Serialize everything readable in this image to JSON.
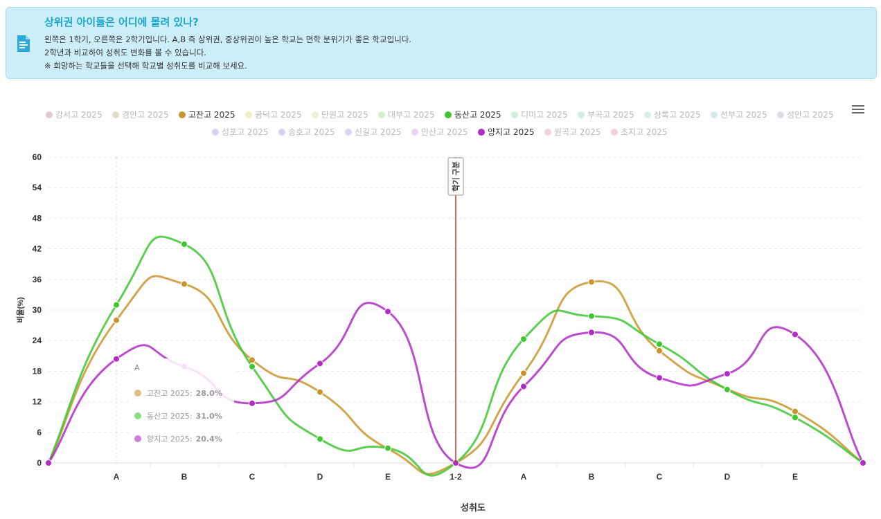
{
  "banner": {
    "title": "상위권 아이들은 어디에 몰려 있나?",
    "line1": "왼쪽은 1학기, 오른쪽은 2학기입니다. A,B 즉 상위권, 중상위권이 높은 학교는 면학 분위기가 좋은 학교입니다.",
    "line2": "2학년과 비교하여 성취도 변화를 볼 수 있습니다.",
    "line3": "※ 희망하는 학교들을 선택해 학교별 성취도를 비교해 보세요.",
    "icon": "document-icon"
  },
  "legend": [
    {
      "label": "강서고 2025",
      "color": "#e4c9cf",
      "active": false
    },
    {
      "label": "경안고 2025",
      "color": "#dedcc9",
      "active": false
    },
    {
      "label": "고잔고 2025",
      "color": "#c9962e",
      "active": true
    },
    {
      "label": "광덕고 2025",
      "color": "#f1efc6",
      "active": false
    },
    {
      "label": "단원고 2025",
      "color": "#ecf3cf",
      "active": false
    },
    {
      "label": "대부고 2025",
      "color": "#d9efcc",
      "active": false
    },
    {
      "label": "동산고 2025",
      "color": "#3ec732",
      "active": true
    },
    {
      "label": "디미고 2025",
      "color": "#d2efdc",
      "active": false
    },
    {
      "label": "부곡고 2025",
      "color": "#cfeee4",
      "active": false
    },
    {
      "label": "상록고 2025",
      "color": "#d6f0e6",
      "active": false
    },
    {
      "label": "선부고 2025",
      "color": "#d3ece9",
      "active": false
    },
    {
      "label": "성안고 2025",
      "color": "#dcdde6",
      "active": false
    },
    {
      "label": "성포고 2025",
      "color": "#d2d4f1",
      "active": false
    },
    {
      "label": "송호고 2025",
      "color": "#d6d2f1",
      "active": false
    },
    {
      "label": "신길고 2025",
      "color": "#ddd4f3",
      "active": false
    },
    {
      "label": "안산고 2025",
      "color": "#e8d6f3",
      "active": false
    },
    {
      "label": "양지고 2025",
      "color": "#b02cc4",
      "active": true
    },
    {
      "label": "원곡고 2025",
      "color": "#f0d3df",
      "active": false
    },
    {
      "label": "초지고 2025",
      "color": "#f3d0e1",
      "active": false
    }
  ],
  "chart_data": {
    "type": "line",
    "title": "",
    "xlabel": "성취도",
    "ylabel": "비율(%)",
    "ylim": [
      0,
      60
    ],
    "yticks": [
      0,
      6,
      12,
      18,
      24,
      30,
      36,
      42,
      48,
      54,
      60
    ],
    "categories": [
      "",
      "A",
      "B",
      "C",
      "D",
      "E",
      "1-2",
      "A",
      "B",
      "C",
      "D",
      "E",
      ""
    ],
    "divider": {
      "category_index": 6,
      "label": "학기 구분",
      "color": "#c0392b"
    },
    "grid": true,
    "legend_position": "top",
    "series": [
      {
        "name": "고잔고 2025",
        "color": "#c9962e",
        "values": [
          0,
          28.0,
          35.1,
          20.2,
          13.9,
          2.8,
          0,
          17.6,
          35.5,
          22.0,
          14.5,
          10.1,
          0
        ]
      },
      {
        "name": "동산고 2025",
        "color": "#3ec732",
        "values": [
          0,
          31.0,
          42.9,
          18.9,
          4.7,
          2.9,
          0,
          24.3,
          28.8,
          23.3,
          14.4,
          8.9,
          0
        ]
      },
      {
        "name": "양지고 2025",
        "color": "#b02cc4",
        "values": [
          0,
          20.4,
          18.9,
          11.7,
          19.5,
          29.7,
          0,
          15.0,
          25.6,
          16.7,
          17.5,
          25.2,
          0
        ]
      }
    ],
    "tooltip": {
      "header": "A",
      "rows": [
        {
          "name": "고잔고 2025",
          "value": "28.0%",
          "color": "#c9962e"
        },
        {
          "name": "동산고 2025",
          "value": "31.0%",
          "color": "#3ec732"
        },
        {
          "name": "양지고 2025",
          "value": "20.4%",
          "color": "#b02cc4"
        }
      ]
    }
  }
}
